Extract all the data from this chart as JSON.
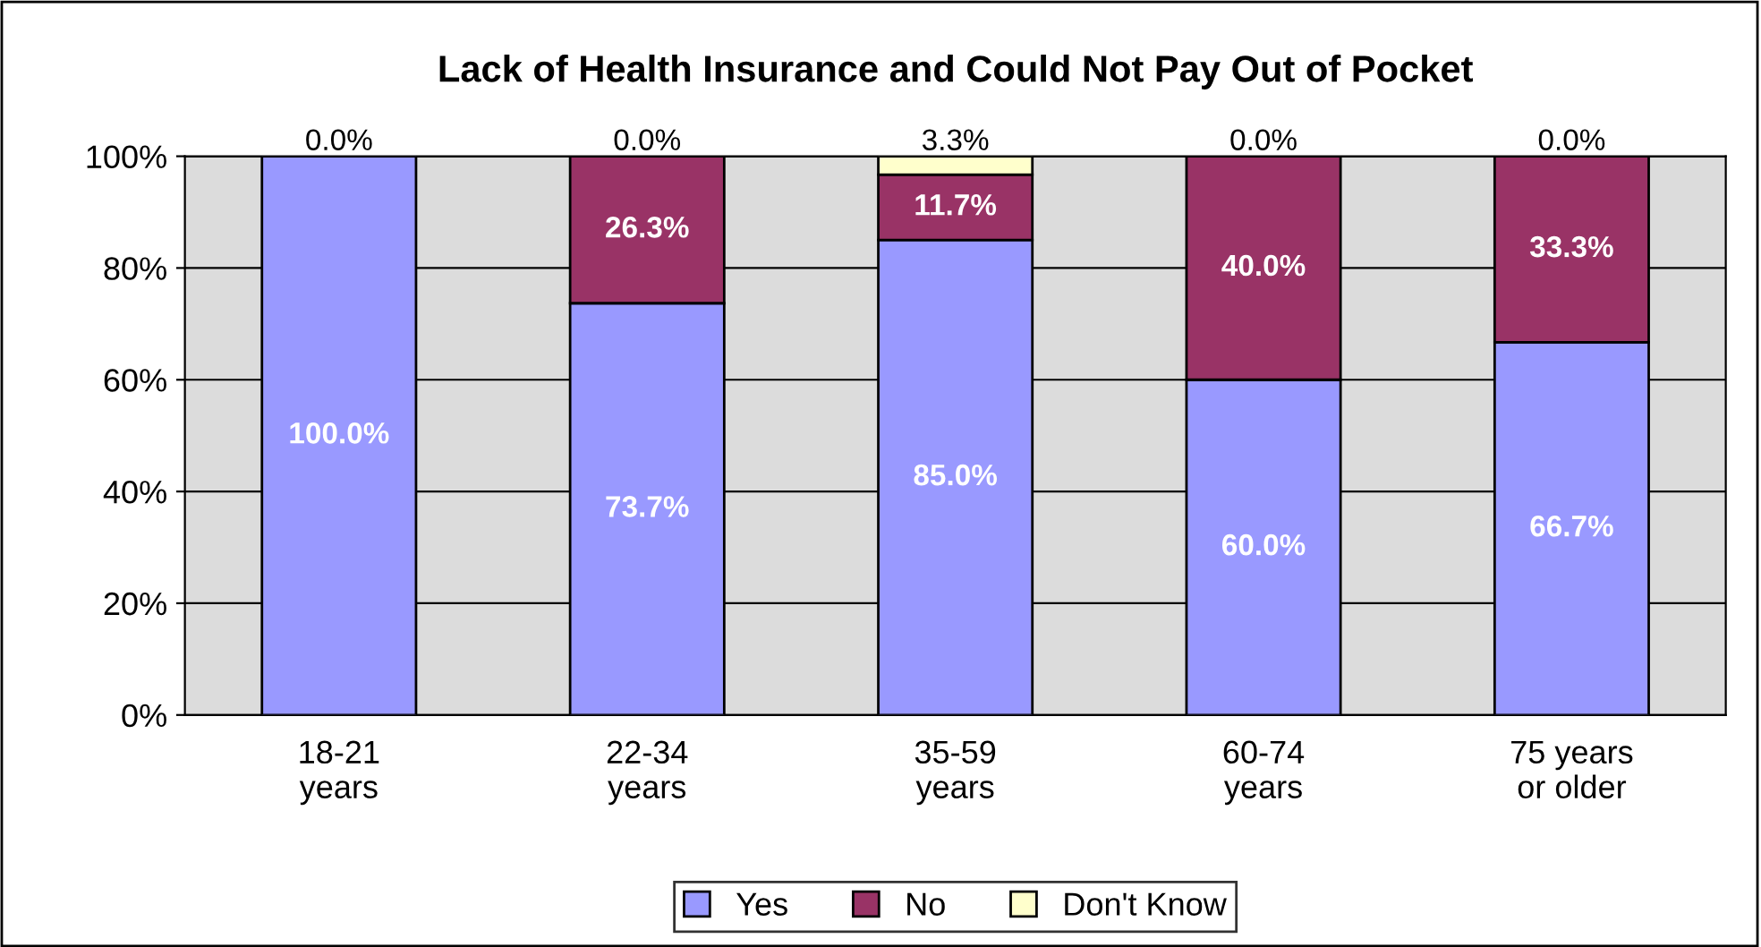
{
  "chart_data": {
    "type": "bar",
    "title": "Lack of Health Insurance and Could Not Pay Out of Pocket",
    "categories": [
      "18-21\nyears",
      "22-34\nyears",
      "35-59\nyears",
      "60-74\nyears",
      "75 years\nor older"
    ],
    "stacked": true,
    "series": [
      {
        "name": "Yes",
        "color": "#9999ff",
        "values": [
          100.0,
          73.7,
          85.0,
          60.0,
          66.7
        ],
        "value_labels": [
          "100.0%",
          "73.7%",
          "85.0%",
          "60.0%",
          "66.7%"
        ]
      },
      {
        "name": "No",
        "color": "#993366",
        "values": [
          0.0,
          26.3,
          11.7,
          40.0,
          33.3
        ],
        "value_labels": [
          null,
          "26.3%",
          "11.7%",
          "40.0%",
          "33.3%"
        ]
      },
      {
        "name": "Don't Know",
        "color": "#ffffcc",
        "values": [
          0.0,
          0.0,
          3.3,
          0.0,
          0.0
        ],
        "value_labels": [
          "0.0%",
          "0.0%",
          "3.3%",
          "0.0%",
          "0.0%"
        ]
      }
    ],
    "ylim": [
      0,
      100
    ],
    "yticks": [
      {
        "value": 0,
        "label": "0%"
      },
      {
        "value": 20,
        "label": "20%"
      },
      {
        "value": 40,
        "label": "40%"
      },
      {
        "value": 60,
        "label": "60%"
      },
      {
        "value": 80,
        "label": "80%"
      },
      {
        "value": 100,
        "label": "100%"
      }
    ],
    "grid": "y",
    "legend": "bottom"
  }
}
